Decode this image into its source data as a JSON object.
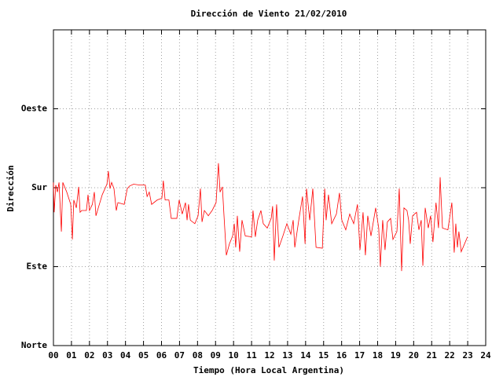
{
  "chart_data": {
    "type": "line",
    "title": "Dirección de Viento 21/02/2010",
    "x_label": "Tiempo (Hora Local Argentina)",
    "y_label": "Dirección",
    "color": "#ff0000",
    "grid": true,
    "xlim": [
      0,
      24
    ],
    "ylim": [
      0,
      360
    ],
    "xticks": [
      {
        "value": 0,
        "label": "00"
      },
      {
        "value": 1,
        "label": "01"
      },
      {
        "value": 2,
        "label": "02"
      },
      {
        "value": 3,
        "label": "03"
      },
      {
        "value": 4,
        "label": "04"
      },
      {
        "value": 5,
        "label": "05"
      },
      {
        "value": 6,
        "label": "06"
      },
      {
        "value": 7,
        "label": "07"
      },
      {
        "value": 8,
        "label": "08"
      },
      {
        "value": 9,
        "label": "09"
      },
      10,
      11,
      12,
      13,
      14,
      15,
      16,
      17,
      18,
      19,
      20,
      21,
      22,
      23,
      24
    ],
    "yticks": [
      {
        "value": 0,
        "label": "Norte"
      },
      {
        "value": 90,
        "label": "Este"
      },
      {
        "value": 180,
        "label": "Sur"
      },
      {
        "value": 270,
        "label": "Oeste"
      }
    ],
    "x": [
      0.0,
      0.04,
      0.13,
      0.22,
      0.31,
      0.44,
      0.52,
      0.74,
      0.96,
      1.05,
      1.13,
      1.27,
      1.4,
      1.48,
      1.57,
      1.83,
      1.92,
      2.0,
      2.16,
      2.27,
      2.36,
      2.49,
      2.71,
      2.97,
      3.05,
      3.14,
      3.23,
      3.36,
      3.49,
      3.58,
      3.93,
      4.1,
      4.23,
      4.45,
      4.8,
      5.1,
      5.2,
      5.32,
      5.45,
      5.76,
      6.02,
      6.1,
      6.2,
      6.41,
      6.54,
      6.85,
      6.98,
      7.15,
      7.33,
      7.42,
      7.5,
      7.6,
      7.85,
      8.03,
      8.16,
      8.25,
      8.38,
      8.6,
      8.81,
      9.03,
      9.16,
      9.25,
      9.38,
      9.47,
      9.6,
      9.77,
      9.95,
      10.04,
      10.12,
      10.21,
      10.34,
      10.47,
      10.65,
      11.0,
      11.08,
      11.21,
      11.34,
      11.52,
      11.65,
      11.87,
      12.09,
      12.17,
      12.26,
      12.39,
      12.52,
      12.74,
      12.96,
      13.18,
      13.31,
      13.4,
      13.62,
      13.83,
      13.97,
      14.05,
      14.23,
      14.4,
      14.58,
      14.93,
      15.06,
      15.14,
      15.27,
      15.45,
      15.71,
      15.88,
      16.01,
      16.23,
      16.45,
      16.67,
      16.88,
      17.02,
      17.19,
      17.32,
      17.45,
      17.63,
      17.89,
      18.06,
      18.15,
      18.28,
      18.41,
      18.54,
      18.72,
      18.85,
      19.07,
      19.2,
      19.33,
      19.46,
      19.63,
      19.72,
      19.81,
      19.94,
      20.16,
      20.29,
      20.42,
      20.51,
      20.64,
      20.81,
      20.94,
      21.07,
      21.24,
      21.38,
      21.47,
      21.6,
      21.9,
      22.12,
      22.25,
      22.34,
      22.43,
      22.51,
      22.64,
      22.99
    ],
    "values": [
      186,
      152,
      183,
      175,
      186,
      130,
      186,
      175,
      161,
      121,
      166,
      157,
      181,
      152,
      154,
      154,
      172,
      154,
      161,
      175,
      148,
      157,
      172,
      184,
      199,
      179,
      186,
      179,
      154,
      163,
      161,
      179,
      182,
      184,
      183,
      183,
      170,
      175,
      161,
      166,
      168,
      188,
      166,
      166,
      145,
      145,
      166,
      150,
      163,
      143,
      161,
      143,
      139,
      148,
      179,
      141,
      154,
      148,
      154,
      163,
      208,
      175,
      181,
      148,
      103,
      116,
      125,
      139,
      112,
      148,
      107,
      143,
      125,
      124,
      154,
      124,
      143,
      154,
      139,
      134,
      145,
      159,
      97,
      161,
      112,
      125,
      139,
      127,
      143,
      112,
      143,
      170,
      116,
      179,
      143,
      179,
      112,
      111,
      179,
      143,
      172,
      139,
      150,
      174,
      143,
      132,
      150,
      139,
      161,
      109,
      152,
      103,
      148,
      125,
      157,
      134,
      90,
      143,
      109,
      141,
      145,
      121,
      130,
      179,
      85,
      157,
      154,
      143,
      116,
      148,
      152,
      132,
      143,
      91,
      157,
      134,
      148,
      118,
      163,
      134,
      192,
      134,
      132,
      163,
      106,
      139,
      112,
      130,
      107,
      124
    ]
  }
}
